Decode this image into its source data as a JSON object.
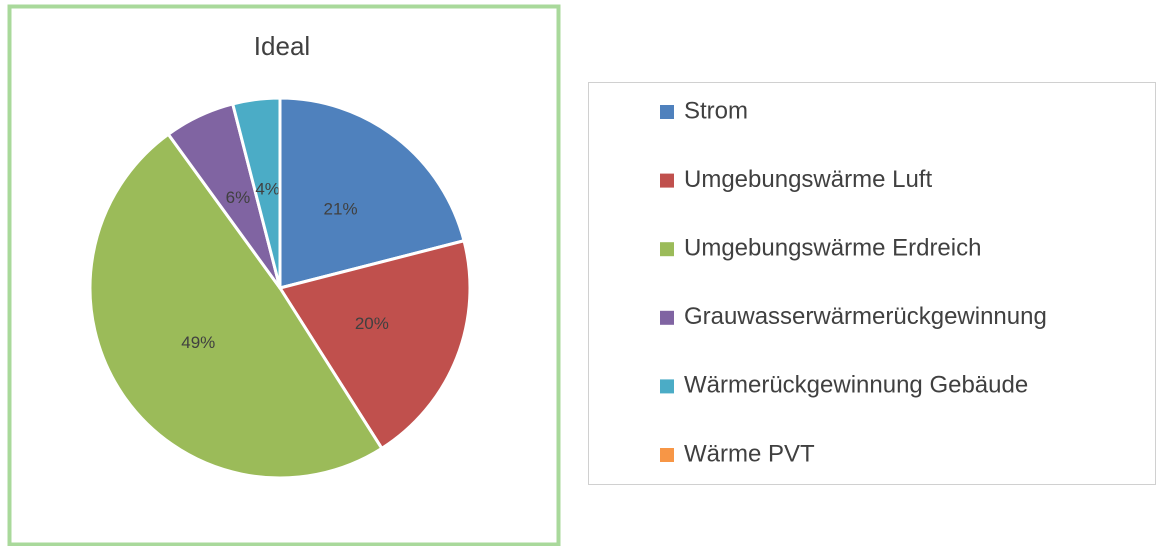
{
  "chart_data": {
    "type": "pie",
    "title": "Ideal",
    "categories": [
      "Strom",
      "Umgebungswärme Luft",
      "Umgebungswärme Erdreich",
      "Grauwasserwärmerückgewinnung",
      "Wärmerückgewinnung Gebäude",
      "Wärme PVT"
    ],
    "values": [
      21,
      20,
      49,
      6,
      4,
      0
    ],
    "value_labels": [
      "21%",
      "20%",
      "49%",
      "6%",
      "4%",
      null
    ],
    "colors": [
      "#4f81bd",
      "#c0504d",
      "#9bbb59",
      "#8064a2",
      "#4bacc6",
      "#f79646"
    ],
    "legend": "right"
  }
}
